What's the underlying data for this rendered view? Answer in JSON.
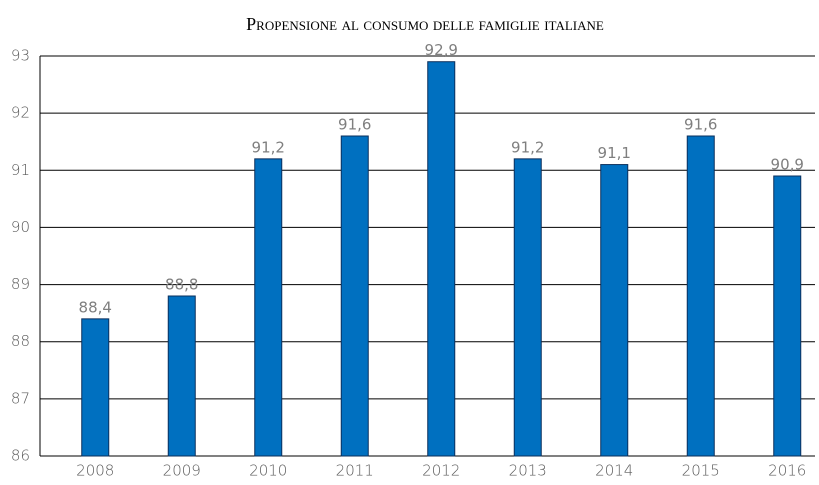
{
  "chart_data": {
    "type": "bar",
    "title": "Propensione al consumo delle famiglie italiane",
    "categories": [
      "2008",
      "2009",
      "2010",
      "2011",
      "2012",
      "2013",
      "2014",
      "2015",
      "2016"
    ],
    "values": [
      88.4,
      88.8,
      91.2,
      91.6,
      92.9,
      91.2,
      91.1,
      91.6,
      90.9
    ],
    "value_labels": [
      "88,4",
      "88,8",
      "91,2",
      "91,6",
      "92,9",
      "91,2",
      "91,1",
      "91,6",
      "90,9"
    ],
    "color": "#0070c0",
    "ylim": [
      86,
      93
    ],
    "yticks": [
      86,
      87,
      88,
      89,
      90,
      91,
      92,
      93
    ],
    "grid": true
  }
}
